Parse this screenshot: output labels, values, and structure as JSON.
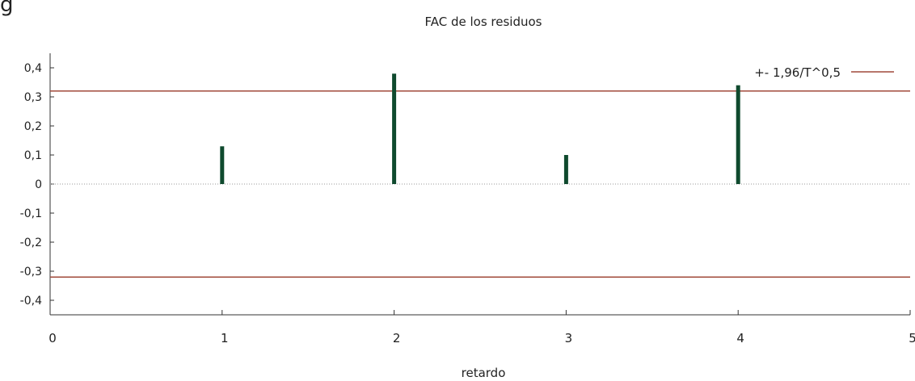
{
  "corner_fragment": "g",
  "chart_data": {
    "type": "bar",
    "title": "FAC de los residuos",
    "xlabel": "retardo",
    "ylabel": "",
    "xlim": [
      0,
      5
    ],
    "ylim": [
      -0.45,
      0.45
    ],
    "x_ticks": [
      0,
      1,
      2,
      3,
      4,
      5
    ],
    "x_tick_labels": [
      "0",
      "1",
      "2",
      "3",
      "4",
      "5"
    ],
    "y_ticks": [
      0.4,
      0.3,
      0.2,
      0.1,
      0,
      -0.1,
      -0.2,
      -0.3,
      -0.4
    ],
    "y_tick_labels": [
      "0,4",
      "0,3",
      "0,2",
      "0,1",
      "0",
      "-0,1",
      "-0,2",
      "-0,3",
      "-0,4"
    ],
    "grid": false,
    "legend_position": "top-right",
    "series": [
      {
        "x": [
          1,
          2,
          3,
          4
        ],
        "values": [
          0.13,
          0.38,
          0.1,
          0.34
        ],
        "color": "#0f4a2e"
      }
    ],
    "bounds": {
      "name": "+- 1,96/T^0,5",
      "value": 0.32,
      "color": "#a0493a"
    },
    "zero_line_color": "#999999",
    "axis_color": "#333333"
  }
}
